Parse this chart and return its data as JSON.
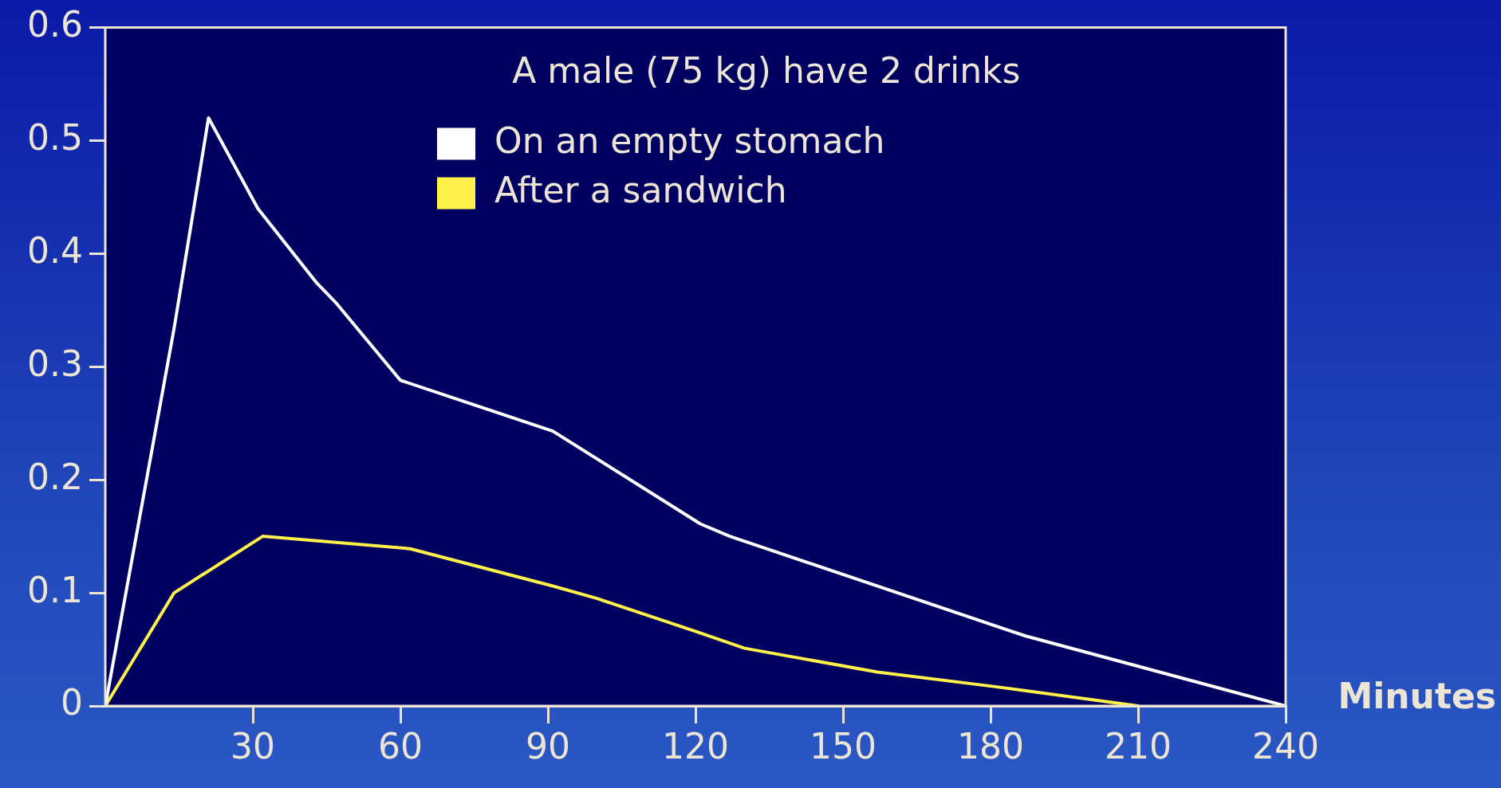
{
  "chart_data": {
    "type": "line",
    "title": "A male (75 kg) have 2 drinks",
    "xlabel": "Minutes",
    "xlim": [
      0,
      240
    ],
    "xticks": [
      30,
      60,
      90,
      120,
      150,
      180,
      210,
      240
    ],
    "ylim": [
      0,
      0.6
    ],
    "yticks": [
      0,
      0.1,
      0.2,
      0.3,
      0.4,
      0.5,
      0.6
    ],
    "grid": false,
    "legend": "top",
    "marker": "none",
    "line_style": "solid",
    "series": [
      {
        "name": "On an empty stomach",
        "color": "#ffffff",
        "x": [
          0,
          14,
          21,
          31,
          43,
          47,
          60,
          91,
          121,
          127,
          187,
          240
        ],
        "values": [
          0,
          0.334,
          0.52,
          0.44,
          0.374,
          0.356,
          0.288,
          0.243,
          0.161,
          0.15,
          0.062,
          0
        ]
      },
      {
        "name": "After a sandwich",
        "color": "#fff04a",
        "x": [
          0,
          14,
          32,
          62,
          91,
          100,
          120,
          130,
          157,
          181,
          210
        ],
        "values": [
          0,
          0.1,
          0.15,
          0.139,
          0.106,
          0.095,
          0.066,
          0.051,
          0.03,
          0.017,
          0
        ]
      }
    ]
  }
}
